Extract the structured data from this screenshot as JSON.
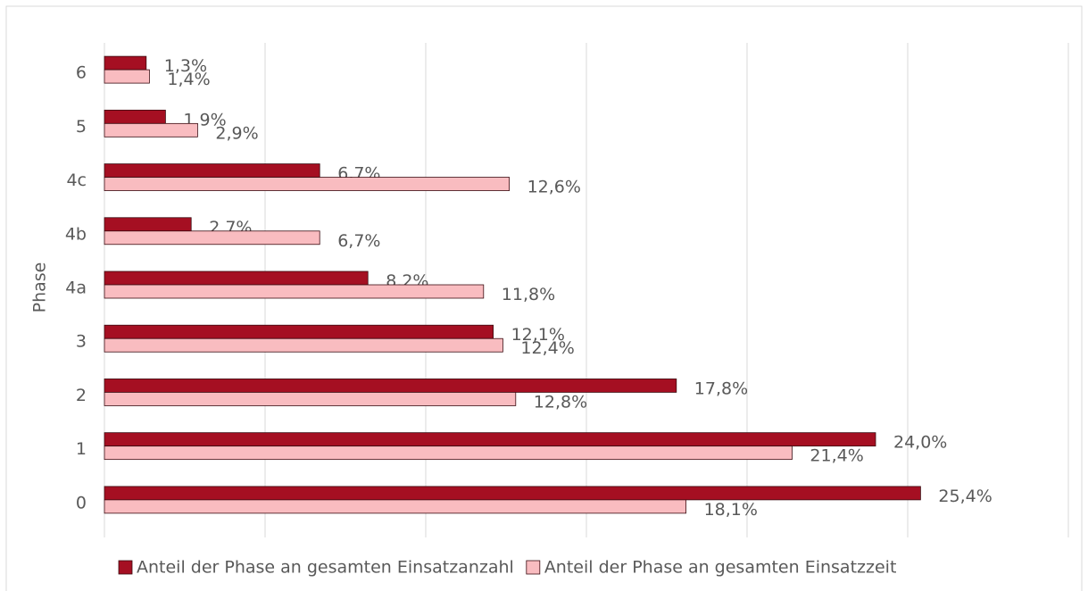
{
  "chart_data": {
    "type": "hbar",
    "y_axis_label": "Phase",
    "categories": [
      "0",
      "1",
      "2",
      "3",
      "4a",
      "4b",
      "4c",
      "5",
      "6"
    ],
    "series": [
      {
        "name": "Anteil der Phase an gesamten Einsatzanzahl",
        "color": "#a50f22",
        "values": [
          25.4,
          24.0,
          17.8,
          12.1,
          8.2,
          2.7,
          6.7,
          1.9,
          1.3
        ],
        "value_labels": [
          "25,4%",
          "24,0%",
          "17,8%",
          "12,1%",
          "8,2%",
          "2,7%",
          "6,7%",
          "1,9%",
          "1,3%"
        ]
      },
      {
        "name": "Anteil der Phase an gesamten Einsatzzeit",
        "color": "#f9bcc0",
        "values": [
          18.1,
          21.4,
          12.8,
          12.4,
          11.8,
          6.7,
          12.6,
          2.9,
          1.4
        ],
        "value_labels": [
          "18,1%",
          "21,4%",
          "12,8%",
          "12,4%",
          "11,8%",
          "6,7%",
          "12,6%",
          "2,9%",
          "1,4%"
        ]
      }
    ],
    "xlim": [
      0,
      30
    ],
    "xticks": [
      0,
      5,
      10,
      15,
      20,
      25,
      30
    ],
    "grid": true,
    "legend": "bottom"
  }
}
